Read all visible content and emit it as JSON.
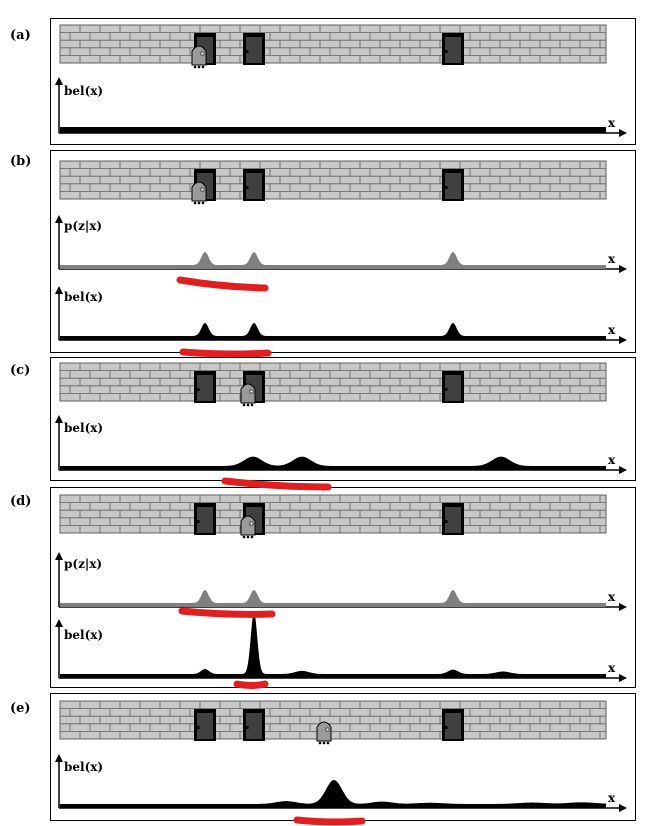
{
  "panels": [
    {
      "label": "(a)",
      "robot_door": 1,
      "plots": [
        {
          "ylabel": "bel(x)",
          "xlabel": "x",
          "kind": "uniform",
          "color": "#000000"
        }
      ]
    },
    {
      "label": "(b)",
      "robot_door": 1,
      "plots": [
        {
          "ylabel": "p(z|x)",
          "xlabel": "x",
          "kind": "doors",
          "color": "#808080"
        },
        {
          "ylabel": "bel(x)",
          "xlabel": "x",
          "kind": "doors",
          "color": "#000000"
        }
      ]
    },
    {
      "label": "(c)",
      "robot_door": 2,
      "plots": [
        {
          "ylabel": "bel(x)",
          "xlabel": "x",
          "kind": "shifted",
          "color": "#000000"
        }
      ]
    },
    {
      "label": "(d)",
      "robot_door": 2,
      "plots": [
        {
          "ylabel": "p(z|x)",
          "xlabel": "x",
          "kind": "doors",
          "color": "#808080"
        },
        {
          "ylabel": "bel(x)",
          "xlabel": "x",
          "kind": "posterior",
          "color": "#000000"
        }
      ]
    },
    {
      "label": "(e)",
      "robot_door": 2.7,
      "plots": [
        {
          "ylabel": "bel(x)",
          "xlabel": "x",
          "kind": "moved",
          "color": "#000000"
        }
      ]
    }
  ],
  "colors": {
    "brick": "#c8c8c8",
    "mortar": "#606060",
    "door": "#404040",
    "robot": "#9a9a9a",
    "annotation": "#e02020"
  },
  "icons": {
    "robot": "robot-icon",
    "door": "door-icon"
  }
}
